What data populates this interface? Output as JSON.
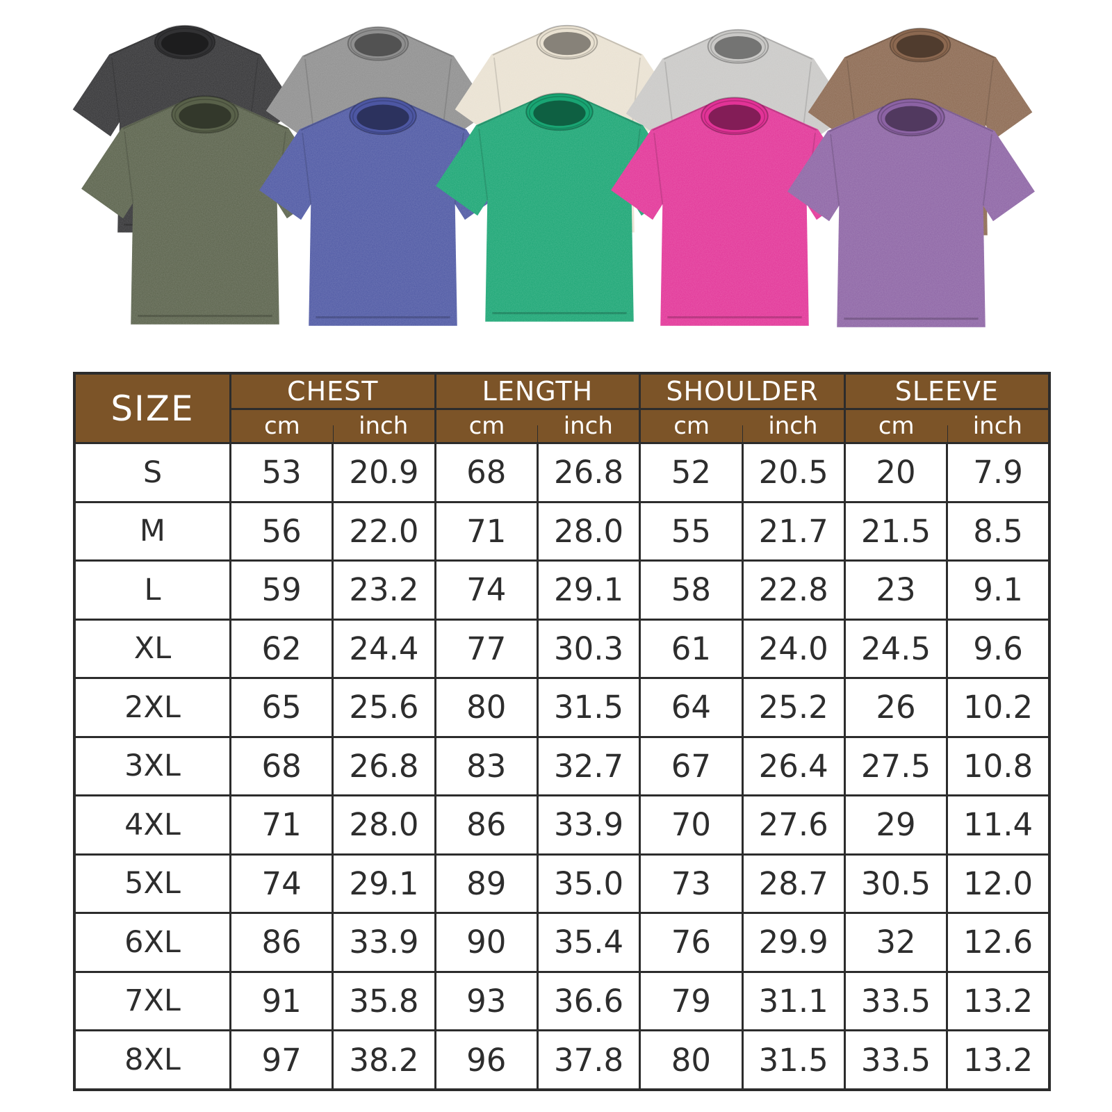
{
  "shirts": {
    "back_row": [
      {
        "name": "black",
        "color": "#323234"
      },
      {
        "name": "grey",
        "color": "#8e8e8e"
      },
      {
        "name": "beige",
        "color": "#e9e1d1"
      },
      {
        "name": "light-grey",
        "color": "#c9c8c6"
      },
      {
        "name": "brown",
        "color": "#8b6850"
      }
    ],
    "front_row": [
      {
        "name": "army-green",
        "color": "#59614a"
      },
      {
        "name": "blue",
        "color": "#4d57a3"
      },
      {
        "name": "green",
        "color": "#19a573"
      },
      {
        "name": "rose-red",
        "color": "#e23397"
      },
      {
        "name": "purple",
        "color": "#8c63a4"
      }
    ]
  },
  "size_chart": {
    "colors": {
      "header_bg": "#7c5428",
      "header_text": "#ffffff",
      "border": "#2c2c2c",
      "body_text": "#2d2d2d"
    },
    "header": {
      "size_label": "SIZE",
      "groups": [
        {
          "label": "CHEST",
          "units": [
            "cm",
            "inch"
          ]
        },
        {
          "label": "LENGTH",
          "units": [
            "cm",
            "inch"
          ]
        },
        {
          "label": "SHOULDER",
          "units": [
            "cm",
            "inch"
          ]
        },
        {
          "label": "SLEEVE",
          "units": [
            "cm",
            "inch"
          ]
        }
      ]
    },
    "rows": [
      {
        "size": "S",
        "cells": [
          "53",
          "20.9",
          "68",
          "26.8",
          "52",
          "20.5",
          "20",
          "7.9"
        ]
      },
      {
        "size": "M",
        "cells": [
          "56",
          "22.0",
          "71",
          "28.0",
          "55",
          "21.7",
          "21.5",
          "8.5"
        ]
      },
      {
        "size": "L",
        "cells": [
          "59",
          "23.2",
          "74",
          "29.1",
          "58",
          "22.8",
          "23",
          "9.1"
        ]
      },
      {
        "size": "XL",
        "cells": [
          "62",
          "24.4",
          "77",
          "30.3",
          "61",
          "24.0",
          "24.5",
          "9.6"
        ]
      },
      {
        "size": "2XL",
        "cells": [
          "65",
          "25.6",
          "80",
          "31.5",
          "64",
          "25.2",
          "26",
          "10.2"
        ]
      },
      {
        "size": "3XL",
        "cells": [
          "68",
          "26.8",
          "83",
          "32.7",
          "67",
          "26.4",
          "27.5",
          "10.8"
        ]
      },
      {
        "size": "4XL",
        "cells": [
          "71",
          "28.0",
          "86",
          "33.9",
          "70",
          "27.6",
          "29",
          "11.4"
        ]
      },
      {
        "size": "5XL",
        "cells": [
          "74",
          "29.1",
          "89",
          "35.0",
          "73",
          "28.7",
          "30.5",
          "12.0"
        ]
      },
      {
        "size": "6XL",
        "cells": [
          "86",
          "33.9",
          "90",
          "35.4",
          "76",
          "29.9",
          "32",
          "12.6"
        ]
      },
      {
        "size": "7XL",
        "cells": [
          "91",
          "35.8",
          "93",
          "36.6",
          "79",
          "31.1",
          "33.5",
          "13.2"
        ]
      },
      {
        "size": "8XL",
        "cells": [
          "97",
          "38.2",
          "96",
          "37.8",
          "80",
          "31.5",
          "33.5",
          "13.2"
        ]
      }
    ]
  },
  "chart_data": {
    "type": "table",
    "columns": [
      "SIZE",
      "CHEST cm",
      "CHEST inch",
      "LENGTH cm",
      "LENGTH inch",
      "SHOULDER cm",
      "SHOULDER inch",
      "SLEEVE cm",
      "SLEEVE inch"
    ],
    "rows": [
      [
        "S",
        "53",
        "20.9",
        "68",
        "26.8",
        "52",
        "20.5",
        "20",
        "7.9"
      ],
      [
        "M",
        "56",
        "22.0",
        "71",
        "28.0",
        "55",
        "21.7",
        "21.5",
        "8.5"
      ],
      [
        "L",
        "59",
        "23.2",
        "74",
        "29.1",
        "58",
        "22.8",
        "23",
        "9.1"
      ],
      [
        "XL",
        "62",
        "24.4",
        "77",
        "30.3",
        "61",
        "24.0",
        "24.5",
        "9.6"
      ],
      [
        "2XL",
        "65",
        "25.6",
        "80",
        "31.5",
        "64",
        "25.2",
        "26",
        "10.2"
      ],
      [
        "3XL",
        "68",
        "26.8",
        "83",
        "32.7",
        "67",
        "26.4",
        "27.5",
        "10.8"
      ],
      [
        "4XL",
        "71",
        "28.0",
        "86",
        "33.9",
        "70",
        "27.6",
        "29",
        "11.4"
      ],
      [
        "5XL",
        "74",
        "29.1",
        "89",
        "35.0",
        "73",
        "28.7",
        "30.5",
        "12.0"
      ],
      [
        "6XL",
        "86",
        "33.9",
        "90",
        "35.4",
        "76",
        "29.9",
        "32",
        "12.6"
      ],
      [
        "7XL",
        "91",
        "35.8",
        "93",
        "36.6",
        "79",
        "31.1",
        "33.5",
        "13.2"
      ],
      [
        "8XL",
        "97",
        "38.2",
        "96",
        "37.8",
        "80",
        "31.5",
        "33.5",
        "13.2"
      ]
    ]
  }
}
